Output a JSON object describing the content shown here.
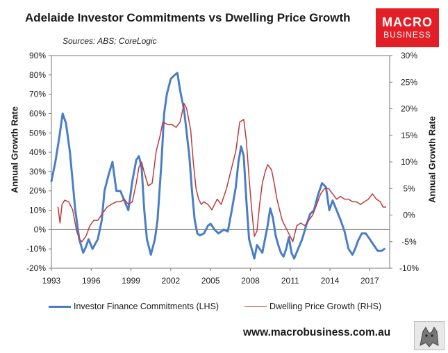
{
  "header": {
    "title": "Adelaide Investor Commitments vs Dwelling Price Growth",
    "subtitle": "Sources: ABS; CoreLogic",
    "logo_line1": "MACRO",
    "logo_line2": "BUSINESS",
    "website": "www.macrobusiness.com.au"
  },
  "colors": {
    "investor": "#4a7ec4",
    "price": "#c0393b",
    "logo_bg": "#e21f26"
  },
  "chart_data": {
    "type": "line",
    "title": "Adelaide Investor Commitments vs Dwelling Price Growth",
    "ylabel": "Annual Growth Rate",
    "y2label": "Annual Growth Rate",
    "xlim": [
      1993,
      2018.5
    ],
    "ylim": [
      -20,
      90
    ],
    "y2lim": [
      -10,
      30
    ],
    "x_ticks": [
      1993,
      1996,
      1999,
      2002,
      2005,
      2008,
      2011,
      2014,
      2017
    ],
    "x_tick_labels": [
      "1993",
      "1996",
      "1999",
      "2002",
      "2005",
      "2008",
      "2011",
      "2014",
      "2017"
    ],
    "y_ticks": [
      -20,
      -10,
      0,
      10,
      20,
      30,
      40,
      50,
      60,
      70,
      80,
      90
    ],
    "y_tick_labels": [
      "-20%",
      "-10%",
      "0%",
      "10%",
      "20%",
      "30%",
      "40%",
      "50%",
      "60%",
      "70%",
      "80%",
      "90%"
    ],
    "y2_ticks": [
      -10,
      -5,
      0,
      5,
      10,
      15,
      20,
      25,
      30
    ],
    "y2_tick_labels": [
      "-10%",
      "-5%",
      "0%",
      "5%",
      "10%",
      "15%",
      "20%",
      "25%",
      "30%"
    ],
    "grid": false,
    "legend_position": "bottom",
    "series": [
      {
        "name": "Investor Finance Commitments (LHS)",
        "axis": "left",
        "x": [
          1993.0,
          1993.3,
          1993.6,
          1993.85,
          1994.1,
          1994.4,
          1994.8,
          1995.1,
          1995.4,
          1995.6,
          1995.8,
          1996.1,
          1996.5,
          1996.8,
          1997.0,
          1997.3,
          1997.6,
          1997.9,
          1998.2,
          1998.5,
          1998.8,
          1999.1,
          1999.4,
          1999.6,
          1999.8,
          2000.0,
          2000.2,
          2000.5,
          2000.8,
          2001.0,
          2001.3,
          2001.5,
          2001.7,
          2002.0,
          2002.3,
          2002.5,
          2002.7,
          2003.0,
          2003.2,
          2003.4,
          2003.6,
          2003.8,
          2004.0,
          2004.2,
          2004.5,
          2004.8,
          2005.0,
          2005.3,
          2005.6,
          2006.0,
          2006.3,
          2006.6,
          2006.9,
          2007.1,
          2007.3,
          2007.5,
          2007.7,
          2007.9,
          2008.1,
          2008.3,
          2008.5,
          2008.7,
          2008.9,
          2009.1,
          2009.3,
          2009.5,
          2009.7,
          2009.9,
          2010.1,
          2010.3,
          2010.5,
          2010.7,
          2010.9,
          2011.1,
          2011.3,
          2011.6,
          2011.9,
          2012.2,
          2012.5,
          2012.8,
          2013.1,
          2013.4,
          2013.7,
          2013.95,
          2014.2,
          2014.5,
          2014.8,
          2015.1,
          2015.4,
          2015.7,
          2015.9,
          2016.1,
          2016.4,
          2016.7,
          2017.0,
          2017.3,
          2017.6,
          2017.9,
          2018.1
        ],
        "values": [
          25,
          35,
          48,
          60,
          55,
          40,
          10,
          -5,
          -12,
          -9,
          -5,
          -10,
          -5,
          5,
          20,
          28,
          35,
          20,
          20,
          15,
          10,
          25,
          36,
          38,
          32,
          10,
          -5,
          -13,
          -5,
          5,
          35,
          60,
          70,
          78,
          80,
          81,
          72,
          62,
          50,
          38,
          20,
          5,
          -2,
          -3,
          -2,
          2,
          3,
          0,
          -2,
          0,
          -1,
          10,
          22,
          35,
          43,
          38,
          15,
          -5,
          -10,
          -15,
          -8,
          -10,
          -12,
          -5,
          2,
          11,
          6,
          -3,
          -8,
          -12,
          -14,
          -10,
          -4,
          -12,
          -15,
          -10,
          -5,
          2,
          8,
          10,
          18,
          24,
          22,
          10,
          15,
          10,
          5,
          -1,
          -10,
          -13,
          -10,
          -6,
          -2,
          -2,
          -5,
          -8,
          -11,
          -11,
          -10
        ]
      },
      {
        "name": "Dwelling Price Growth (RHS)",
        "axis": "right",
        "x": [
          1993.5,
          1993.65,
          1993.8,
          1994.0,
          1994.3,
          1994.6,
          1994.9,
          1995.1,
          1995.3,
          1995.6,
          1995.9,
          1996.2,
          1996.5,
          1996.9,
          1997.2,
          1997.5,
          1997.9,
          1998.2,
          1998.5,
          1998.8,
          1999.1,
          1999.4,
          1999.6,
          1999.8,
          2000.0,
          2000.3,
          2000.6,
          2000.9,
          2001.2,
          2001.4,
          2001.8,
          2002.1,
          2002.4,
          2002.7,
          2003.0,
          2003.2,
          2003.5,
          2003.7,
          2003.9,
          2004.1,
          2004.3,
          2004.5,
          2004.8,
          2005.1,
          2005.5,
          2005.8,
          2006.2,
          2006.5,
          2006.9,
          2007.2,
          2007.5,
          2007.7,
          2007.9,
          2008.1,
          2008.3,
          2008.5,
          2008.7,
          2008.9,
          2009.1,
          2009.3,
          2009.6,
          2009.8,
          2010.0,
          2010.2,
          2010.4,
          2010.6,
          2010.9,
          2011.2,
          2011.5,
          2011.8,
          2012.1,
          2012.4,
          2012.7,
          2013.0,
          2013.3,
          2013.6,
          2013.9,
          2014.2,
          2014.5,
          2014.8,
          2015.1,
          2015.4,
          2015.7,
          2016.0,
          2016.3,
          2016.6,
          2016.9,
          2017.2,
          2017.5,
          2017.8,
          2018.0,
          2018.2
        ],
        "values": [
          1.5,
          -1.5,
          2.0,
          2.8,
          2.5,
          1.0,
          -3.0,
          -4.5,
          -5.0,
          -4.0,
          -2.0,
          -1.0,
          -1.0,
          0.5,
          1.5,
          2.0,
          2.5,
          2.5,
          3.0,
          2.0,
          2.5,
          6.0,
          9.0,
          10.0,
          8.0,
          5.5,
          6.0,
          12.0,
          15.0,
          17.5,
          17.0,
          17.0,
          16.5,
          17.5,
          21.0,
          20.0,
          16.0,
          10.0,
          5.0,
          3.0,
          2.0,
          2.5,
          2.0,
          1.0,
          3.0,
          2.0,
          5.0,
          8.0,
          12.0,
          17.5,
          18.0,
          14.0,
          7.0,
          1.0,
          -4.0,
          -3.0,
          2.0,
          6.0,
          8.0,
          9.5,
          8.5,
          6.0,
          3.0,
          1.0,
          -1.0,
          -2.0,
          -3.5,
          -5.0,
          -2.0,
          -1.5,
          -2.0,
          -1.0,
          0.0,
          2.0,
          4.0,
          5.0,
          5.0,
          4.0,
          3.0,
          3.5,
          3.0,
          3.0,
          2.5,
          2.5,
          2.0,
          2.5,
          3.0,
          4.0,
          3.0,
          2.5,
          1.5,
          1.5
        ]
      }
    ]
  }
}
